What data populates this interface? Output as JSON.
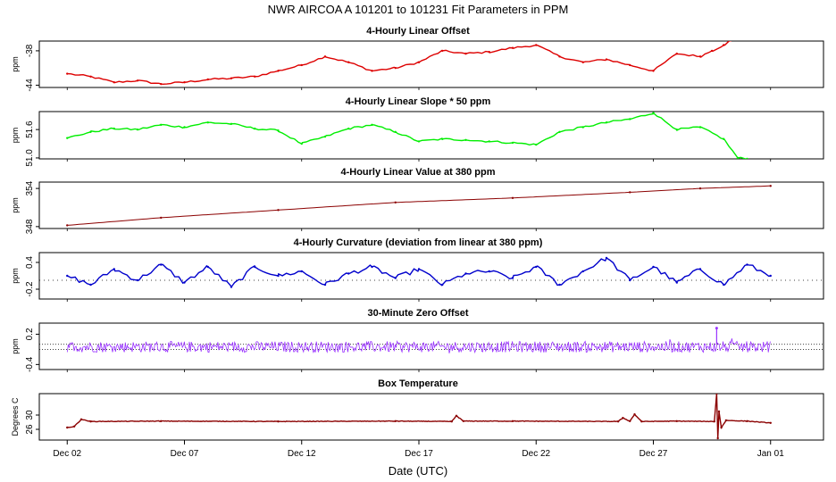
{
  "title": "NWR   AIRCOA A   101201 to 101231   Fit Parameters in PPM",
  "xlabel": "Date (UTC)",
  "x_ticks": [
    "Dec 02",
    "Dec 07",
    "Dec 12",
    "Dec 17",
    "Dec 22",
    "Dec 27",
    "Jan 01"
  ],
  "colors": {
    "offset": "#dd0000",
    "slope": "#00ee00",
    "value": "#8b0000",
    "curvature": "#0000cc",
    "zero": "#9933ff",
    "temperature": "#8b0000",
    "axis": "#000000"
  },
  "chart_data": [
    {
      "type": "line",
      "title": "4-Hourly Linear Offset",
      "ylabel": "ppm",
      "ylim": [
        -44.4,
        -36.3
      ],
      "yticks": [
        "-44",
        "-38"
      ],
      "ytick_values": [
        -44,
        -38
      ],
      "x_range_days": [
        0,
        31
      ],
      "x": [
        1.0,
        2.0,
        3.0,
        4.0,
        5.0,
        6.0,
        7.0,
        8.0,
        9.0,
        10.0,
        11.0,
        12.0,
        13.0,
        14.0,
        15.0,
        16.0,
        17.0,
        18.0,
        19.0,
        20.0,
        21.0,
        22.0,
        23.0,
        24.0,
        25.0,
        26.0,
        27.0,
        28.0,
        28.5,
        29.0,
        29.3
      ],
      "values": [
        -42.0,
        -42.5,
        -43.5,
        -43.2,
        -43.8,
        -43.5,
        -43.0,
        -42.8,
        -42.5,
        -41.5,
        -40.5,
        -39.0,
        -40.0,
        -41.5,
        -41.0,
        -40.0,
        -38.0,
        -38.5,
        -38.2,
        -37.5,
        -37.0,
        -39.0,
        -40.0,
        -39.5,
        -40.5,
        -41.5,
        -38.5,
        -39.0,
        -38.0,
        -37.0,
        -36.2
      ],
      "series_name": "offset"
    },
    {
      "type": "line",
      "title": "4-Hourly Linear Slope * 50 ppm",
      "ylabel": "ppm",
      "ylim": [
        50.98,
        51.98
      ],
      "yticks": [
        "51.0",
        "51.6"
      ],
      "ytick_values": [
        51.0,
        51.6
      ],
      "x_range_days": [
        0,
        31
      ],
      "x": [
        1.0,
        2.0,
        3.0,
        4.0,
        5.0,
        6.0,
        7.0,
        8.0,
        9.0,
        10.0,
        11.0,
        12.0,
        13.0,
        14.0,
        15.0,
        16.0,
        17.0,
        18.0,
        19.0,
        20.0,
        21.0,
        22.0,
        23.0,
        24.0,
        25.0,
        26.0,
        27.0,
        28.0,
        29.0,
        29.6,
        30.0
      ],
      "values": [
        51.42,
        51.55,
        51.62,
        51.6,
        51.7,
        51.65,
        51.75,
        51.72,
        51.62,
        51.58,
        51.3,
        51.45,
        51.62,
        51.7,
        51.55,
        51.35,
        51.4,
        51.38,
        51.35,
        51.32,
        51.28,
        51.55,
        51.65,
        51.75,
        51.82,
        51.95,
        51.6,
        51.65,
        51.4,
        51.0,
        50.98
      ],
      "series_name": "slope"
    },
    {
      "type": "line",
      "title": "4-Hourly Linear Value at 380 ppm",
      "ylabel": "ppm",
      "ylim": [
        347.7,
        355.0
      ],
      "yticks": [
        "348",
        "354"
      ],
      "ytick_values": [
        348,
        354
      ],
      "x_range_days": [
        0,
        31
      ],
      "x": [
        1.0,
        5.0,
        10.0,
        15.0,
        20.0,
        25.0,
        28.0,
        31.0
      ],
      "values": [
        348.2,
        349.4,
        350.6,
        351.8,
        352.5,
        353.4,
        354.0,
        354.4
      ],
      "series_name": "value"
    },
    {
      "type": "line",
      "title": "4-Hourly Curvature (deviation from linear at 380 ppm)",
      "ylabel": "ppm",
      "ylim": [
        -0.42,
        0.62
      ],
      "yticks": [
        "-0.2",
        "0.4"
      ],
      "ytick_values": [
        -0.2,
        0.4
      ],
      "zero_line": true,
      "x_range_days": [
        0,
        31
      ],
      "x": [
        1.0,
        2.0,
        3.0,
        4.0,
        5.0,
        6.0,
        7.0,
        8.0,
        9.0,
        10.0,
        11.0,
        12.0,
        13.0,
        14.0,
        15.0,
        16.0,
        17.0,
        18.0,
        19.0,
        20.0,
        21.0,
        22.0,
        23.0,
        24.0,
        25.0,
        26.0,
        27.0,
        28.0,
        29.0,
        30.0,
        31.0
      ],
      "values": [
        0.1,
        -0.1,
        0.25,
        0.0,
        0.35,
        -0.05,
        0.3,
        -0.15,
        0.3,
        0.1,
        0.2,
        -0.1,
        0.15,
        0.3,
        0.05,
        0.25,
        -0.1,
        0.15,
        0.2,
        0.05,
        0.3,
        -0.1,
        0.2,
        0.5,
        0.0,
        0.3,
        -0.05,
        0.25,
        -0.1,
        0.35,
        0.1
      ],
      "series_name": "curvature"
    },
    {
      "type": "scatter",
      "title": "30-Minute Zero Offset",
      "ylabel": "ppm",
      "ylim": [
        -0.5,
        0.42
      ],
      "yticks": [
        "-0.4",
        "0.2"
      ],
      "ytick_values": [
        -0.4,
        0.2
      ],
      "ref_lines": [
        0.0,
        -0.1
      ],
      "x_range_days": [
        0,
        31
      ],
      "typical_range": [
        -0.15,
        0.05
      ],
      "spike": {
        "x": 28.7,
        "value": 0.32
      },
      "series_name": "zero"
    },
    {
      "type": "line",
      "title": "Box Temperature",
      "ylabel": "Degrees C",
      "ylim": [
        23.0,
        36.0
      ],
      "yticks": [
        "26",
        "30"
      ],
      "ytick_values": [
        26,
        30
      ],
      "x_range_days": [
        0,
        31
      ],
      "x": [
        1.0,
        1.3,
        1.6,
        2.0,
        5.0,
        10.0,
        15.0,
        17.4,
        17.6,
        17.9,
        20.0,
        24.5,
        24.7,
        25.0,
        25.2,
        25.5,
        27.0,
        28.6,
        28.7,
        28.75,
        28.8,
        28.9,
        29.1,
        30.0,
        31.0
      ],
      "values": [
        26.5,
        26.8,
        28.8,
        28.2,
        28.3,
        28.2,
        28.3,
        28.2,
        29.8,
        28.3,
        28.3,
        28.2,
        29.2,
        28.3,
        30.2,
        28.2,
        28.3,
        28.2,
        36.0,
        23.5,
        31.0,
        26.5,
        28.5,
        28.3,
        27.8
      ],
      "series_name": "temperature"
    }
  ]
}
